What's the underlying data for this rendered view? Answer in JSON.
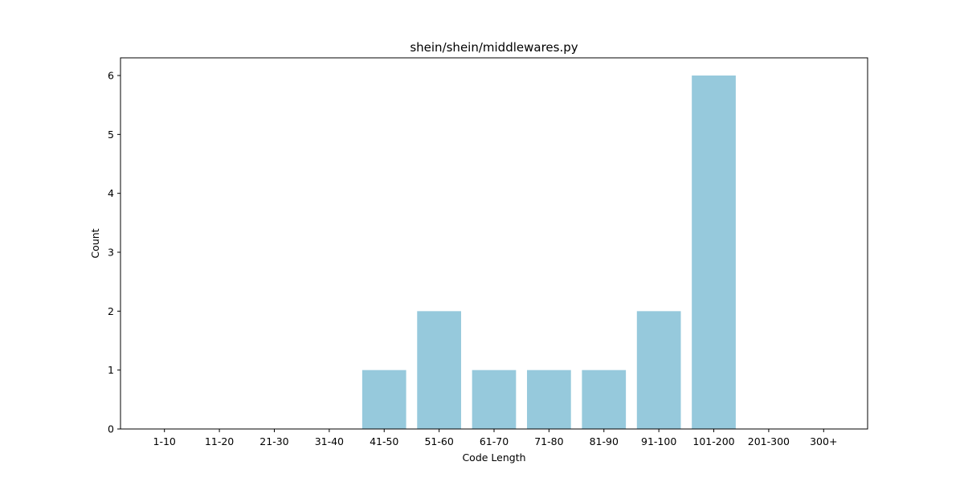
{
  "chart_data": {
    "type": "bar",
    "title": "shein/shein/middlewares.py",
    "xlabel": "Code Length",
    "ylabel": "Count",
    "categories": [
      "1-10",
      "11-20",
      "21-30",
      "31-40",
      "41-50",
      "51-60",
      "61-70",
      "71-80",
      "81-90",
      "91-100",
      "101-200",
      "201-300",
      "300+"
    ],
    "values": [
      0,
      0,
      0,
      0,
      1,
      2,
      1,
      1,
      1,
      2,
      6,
      0,
      0
    ],
    "ylim": [
      0,
      6.3
    ],
    "yticks": [
      0,
      1,
      2,
      3,
      4,
      5,
      6
    ],
    "bar_color": "#96c9dc",
    "grid": false,
    "legend": "none"
  }
}
